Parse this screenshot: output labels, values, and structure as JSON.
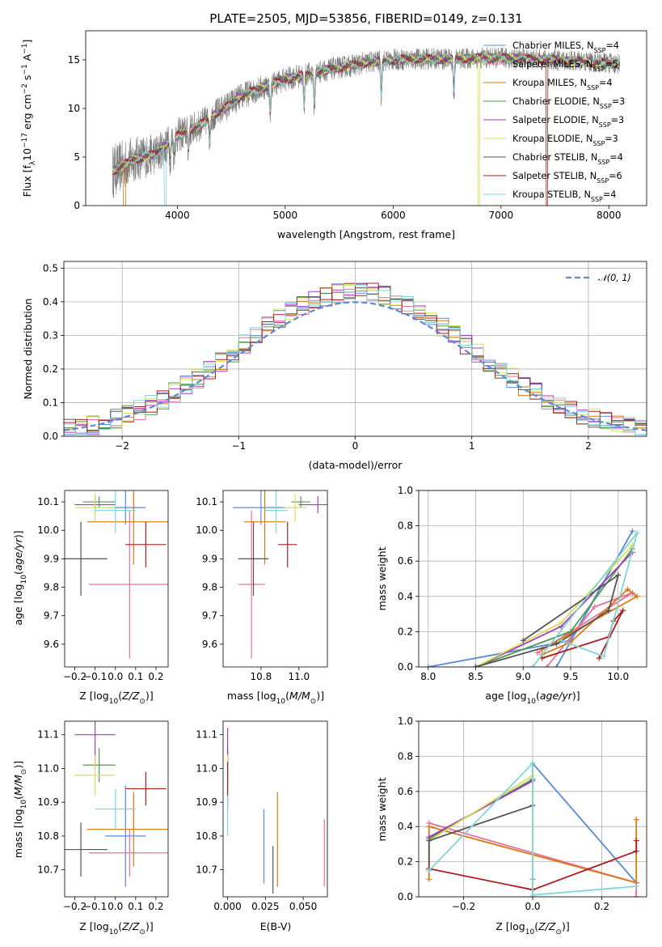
{
  "chart_data": [
    {
      "type": "line",
      "title": "PLATE=2505, MJD=53856, FIBERID=0149, z=0.131",
      "xlabel": "wavelength [Angstrom, rest frame]",
      "ylabel": "Flux [f_λ10^-17 erg cm^-2 s^-1 A^-1]",
      "xlim": [
        3150,
        8350
      ],
      "ylim": [
        0,
        18
      ],
      "xticks": [
        4000,
        5000,
        6000,
        7000,
        8000
      ],
      "yticks": [
        0,
        5,
        10,
        15
      ],
      "grid": false,
      "legend_position": "right",
      "series": [
        {
          "name": "Chabrier MILES, N_SSP=4",
          "label_main": "Chabrier MILES, N",
          "label_sub": "SSP",
          "label_tail": "=4",
          "color": "#5b8ad8"
        },
        {
          "name": "Salpeter MILES, N_SSP=5",
          "label_main": "Salpeter MILES, N",
          "label_sub": "SSP",
          "label_tail": "=5",
          "color": "#e8709f"
        },
        {
          "name": "Kroupa MILES, N_SSP=4",
          "label_main": "Kroupa MILES, N",
          "label_sub": "SSP",
          "label_tail": "=4",
          "color": "#d97a12"
        },
        {
          "name": "Chabrier ELODIE, N_SSP=3",
          "label_main": "Chabrier ELODIE, N",
          "label_sub": "SSP",
          "label_tail": "=3",
          "color": "#4f9a4f"
        },
        {
          "name": "Salpeter ELODIE, N_SSP=3",
          "label_main": "Salpeter ELODIE, N",
          "label_sub": "SSP",
          "label_tail": "=3",
          "color": "#a23cc1"
        },
        {
          "name": "Kroupa ELODIE, N_SSP=3",
          "label_main": "Kroupa ELODIE, N",
          "label_sub": "SSP",
          "label_tail": "=3",
          "color": "#d8e055"
        },
        {
          "name": "Chabrier STELIB, N_SSP=4",
          "label_main": "Chabrier STELIB, N",
          "label_sub": "SSP",
          "label_tail": "=4",
          "color": "#555555"
        },
        {
          "name": "Salpeter STELIB, N_SSP=6",
          "label_main": "Salpeter STELIB, N",
          "label_sub": "SSP",
          "label_tail": "=6",
          "color": "#aa1f1f"
        },
        {
          "name": "Kroupa STELIB, N_SSP=4",
          "label_main": "Kroupa STELIB, N",
          "label_sub": "SSP",
          "label_tail": "=4",
          "color": "#7fd6d8"
        }
      ],
      "continuum": [
        [
          3400,
          3.5
        ],
        [
          3600,
          4.8
        ],
        [
          3800,
          5.3
        ],
        [
          4000,
          7.2
        ],
        [
          4200,
          8.2
        ],
        [
          4400,
          9.8
        ],
        [
          4600,
          11.3
        ],
        [
          4800,
          12.2
        ],
        [
          5000,
          13.0
        ],
        [
          5200,
          13.5
        ],
        [
          5400,
          14.0
        ],
        [
          5600,
          14.4
        ],
        [
          5800,
          14.8
        ],
        [
          6000,
          15.0
        ],
        [
          6200,
          15.1
        ],
        [
          6400,
          15.1
        ],
        [
          6600,
          15.1
        ],
        [
          6800,
          15.2
        ],
        [
          7000,
          15.2
        ],
        [
          7200,
          15.1
        ],
        [
          7500,
          15.0
        ],
        [
          7800,
          14.8
        ],
        [
          8100,
          14.6
        ]
      ],
      "absorption_features": [
        3934,
        3969,
        4102,
        4300,
        4861,
        5175,
        5270,
        5890,
        6563
      ],
      "notes": "Observed spectrum and 9 model fits overlap; some models drop to 0 near 3500, 3880, 6800, 7420 Angstrom."
    },
    {
      "type": "line",
      "xlabel": "(data-model)/error",
      "ylabel": "Normed distribution",
      "xlim": [
        -2.5,
        2.5
      ],
      "ylim": [
        0,
        0.52
      ],
      "xticks": [
        -2,
        -1,
        0,
        1,
        2
      ],
      "yticks": [
        0.0,
        0.1,
        0.2,
        0.3,
        0.4,
        0.5
      ],
      "grid": true,
      "legend_position": "top-right",
      "reference_curve": {
        "name": "N(0,1)",
        "color": "#5b8ad8",
        "style": "dashed"
      },
      "histogram_bin_width": 0.1,
      "histogram_series_colors": [
        "#5b8ad8",
        "#e8709f",
        "#d97a12",
        "#4f9a4f",
        "#a23cc1",
        "#d8e055",
        "#555555",
        "#aa1f1f",
        "#7fd6d8"
      ]
    },
    {
      "type": "scatter",
      "xlabel": "Z [log10(Z/Z_sun)]",
      "ylabel": "age [log10(age/yr)]",
      "xlim": [
        -0.25,
        0.26
      ],
      "ylim": [
        9.52,
        10.14
      ],
      "xticks": [
        -0.2,
        -0.1,
        0.0,
        0.1,
        0.2
      ],
      "yticks": [
        9.6,
        9.7,
        9.8,
        9.9,
        10.0,
        10.1
      ],
      "points": [
        {
          "color": "#5b8ad8",
          "x": 0.05,
          "xerr": 0.1,
          "y": 10.08,
          "yerr": 0.06
        },
        {
          "color": "#e8709f",
          "x": 0.07,
          "xerr": 0.2,
          "y": 9.81,
          "yerr": 0.26
        },
        {
          "color": "#d97a12",
          "x": 0.09,
          "xerr": 0.23,
          "y": 10.03,
          "yerr": 0.15
        },
        {
          "color": "#4f9a4f",
          "x": -0.08,
          "xerr": 0.08,
          "y": 10.1,
          "yerr": 0.02
        },
        {
          "color": "#a23cc1",
          "x": -0.1,
          "xerr": 0.1,
          "y": 10.09,
          "yerr": 0.03
        },
        {
          "color": "#d8e055",
          "x": -0.1,
          "xerr": 0.1,
          "y": 10.08,
          "yerr": 0.05
        },
        {
          "color": "#555555",
          "x": -0.17,
          "xerr": 0.13,
          "y": 9.9,
          "yerr": 0.13
        },
        {
          "color": "#aa1f1f",
          "x": 0.15,
          "xerr": 0.1,
          "y": 9.95,
          "yerr": 0.08
        },
        {
          "color": "#7fd6d8",
          "x": 0.0,
          "xerr": 0.1,
          "y": 10.07,
          "yerr": 0.08
        }
      ]
    },
    {
      "type": "scatter",
      "xlabel": "mass [log10(M/M_sun)]",
      "ylabel": "",
      "xlim": [
        10.6,
        11.15
      ],
      "ylim": [
        9.52,
        10.14
      ],
      "xticks": [
        10.8,
        11.0
      ],
      "yticks": [
        9.6,
        9.7,
        9.8,
        9.9,
        10.0,
        10.1
      ],
      "points": [
        {
          "color": "#5b8ad8",
          "x": 10.8,
          "xerr": 0.15,
          "y": 10.08,
          "yerr": 0.06
        },
        {
          "color": "#e8709f",
          "x": 10.75,
          "xerr": 0.07,
          "y": 9.81,
          "yerr": 0.26
        },
        {
          "color": "#d97a12",
          "x": 10.82,
          "xerr": 0.11,
          "y": 10.03,
          "yerr": 0.15
        },
        {
          "color": "#4f9a4f",
          "x": 11.01,
          "xerr": 0.05,
          "y": 10.1,
          "yerr": 0.02
        },
        {
          "color": "#a23cc1",
          "x": 11.1,
          "xerr": 0.1,
          "y": 10.09,
          "yerr": 0.03
        },
        {
          "color": "#d8e055",
          "x": 10.98,
          "xerr": 0.06,
          "y": 10.08,
          "yerr": 0.05
        },
        {
          "color": "#555555",
          "x": 10.76,
          "xerr": 0.08,
          "y": 9.9,
          "yerr": 0.13
        },
        {
          "color": "#aa1f1f",
          "x": 10.94,
          "xerr": 0.05,
          "y": 9.95,
          "yerr": 0.08
        },
        {
          "color": "#7fd6d8",
          "x": 10.88,
          "xerr": 0.06,
          "y": 10.07,
          "yerr": 0.08
        }
      ]
    },
    {
      "type": "line",
      "xlabel": "age [log10(age/yr)]",
      "ylabel": "mass weight",
      "xlim": [
        7.9,
        10.3
      ],
      "ylim": [
        0,
        1
      ],
      "xticks": [
        8.0,
        8.5,
        9.0,
        9.5,
        10.0
      ],
      "yticks": [
        0.0,
        0.2,
        0.4,
        0.6,
        0.8,
        1.0
      ],
      "grid": true,
      "series": [
        {
          "color": "#5b8ad8",
          "points": [
            [
              8.0,
              0.0
            ],
            [
              9.5,
              0.15
            ],
            [
              10.15,
              0.77
            ],
            [
              9.35,
              0.0
            ]
          ]
        },
        {
          "color": "#e8709f",
          "points": [
            [
              9.25,
              0.0
            ],
            [
              9.75,
              0.34
            ],
            [
              10.15,
              0.42
            ],
            [
              9.15,
              0.08
            ]
          ]
        },
        {
          "color": "#d97a12",
          "points": [
            [
              9.2,
              0.07
            ],
            [
              9.5,
              0.14
            ],
            [
              10.1,
              0.44
            ],
            [
              10.2,
              0.4
            ],
            [
              9.2,
              0.1
            ]
          ]
        },
        {
          "color": "#4f9a4f",
          "points": [
            [
              8.5,
              0.0
            ],
            [
              9.5,
              0.2
            ],
            [
              10.15,
              0.67
            ]
          ]
        },
        {
          "color": "#a23cc1",
          "points": [
            [
              8.5,
              0.0
            ],
            [
              9.4,
              0.23
            ],
            [
              10.15,
              0.65
            ]
          ]
        },
        {
          "color": "#d8e055",
          "points": [
            [
              8.5,
              0.0
            ],
            [
              9.4,
              0.25
            ],
            [
              10.15,
              0.69
            ]
          ]
        },
        {
          "color": "#555555",
          "points": [
            [
              8.5,
              0.0
            ],
            [
              9.35,
              0.13
            ],
            [
              9.9,
              0.32
            ],
            [
              10.0,
              0.52
            ],
            [
              9.0,
              0.15
            ]
          ]
        },
        {
          "color": "#aa1f1f",
          "points": [
            [
              9.2,
              0.05
            ],
            [
              9.9,
              0.17
            ],
            [
              9.95,
              0.26
            ],
            [
              10.05,
              0.32
            ],
            [
              9.8,
              0.05
            ]
          ]
        },
        {
          "color": "#7fd6d8",
          "points": [
            [
              9.4,
              0.15
            ],
            [
              9.85,
              0.06
            ],
            [
              10.2,
              0.76
            ],
            [
              9.1,
              0.0
            ]
          ]
        }
      ]
    },
    {
      "type": "scatter",
      "xlabel": "Z [log10(Z/Z_sun)]",
      "ylabel": "mass [log10(M/M_sun)]",
      "xlim": [
        -0.25,
        0.26
      ],
      "ylim": [
        10.62,
        11.14
      ],
      "xticks": [
        -0.2,
        -0.1,
        0.0,
        0.1,
        0.2
      ],
      "yticks": [
        10.7,
        10.8,
        10.9,
        11.0,
        11.1
      ],
      "points": [
        {
          "color": "#5b8ad8",
          "x": 0.05,
          "xerr": 0.1,
          "y": 10.8,
          "yerr": 0.15
        },
        {
          "color": "#e8709f",
          "x": 0.07,
          "xerr": 0.2,
          "y": 10.75,
          "yerr": 0.07
        },
        {
          "color": "#d97a12",
          "x": 0.09,
          "xerr": 0.23,
          "y": 10.82,
          "yerr": 0.11
        },
        {
          "color": "#4f9a4f",
          "x": -0.08,
          "xerr": 0.08,
          "y": 11.01,
          "yerr": 0.05
        },
        {
          "color": "#a23cc1",
          "x": -0.1,
          "xerr": 0.1,
          "y": 11.1,
          "yerr": 0.1
        },
        {
          "color": "#d8e055",
          "x": -0.1,
          "xerr": 0.1,
          "y": 10.98,
          "yerr": 0.06
        },
        {
          "color": "#555555",
          "x": -0.17,
          "xerr": 0.13,
          "y": 10.76,
          "yerr": 0.08
        },
        {
          "color": "#aa1f1f",
          "x": 0.15,
          "xerr": 0.1,
          "y": 10.94,
          "yerr": 0.05
        },
        {
          "color": "#7fd6d8",
          "x": 0.0,
          "xerr": 0.1,
          "y": 10.88,
          "yerr": 0.06
        }
      ]
    },
    {
      "type": "scatter",
      "xlabel": "E(B-V)",
      "ylabel": "",
      "xlim": [
        -0.003,
        0.066
      ],
      "ylim": [
        10.62,
        11.14
      ],
      "xticks": [
        0.0,
        0.025,
        0.05
      ],
      "xtick_labels": [
        "0.000",
        "0.025",
        "0.050"
      ],
      "yticks": [
        10.7,
        10.8,
        10.9,
        11.0,
        11.1
      ],
      "points": [
        {
          "color": "#5b8ad8",
          "x": 0.024,
          "y": 10.77,
          "yerr": 0.11
        },
        {
          "color": "#e8709f",
          "x": 0.064,
          "y": 10.75,
          "yerr": 0.1
        },
        {
          "color": "#d97a12",
          "x": 0.033,
          "y": 10.79,
          "yerr": 0.14
        },
        {
          "color": "#4f9a4f",
          "x": 0.0,
          "y": 11.01,
          "yerr": 0.05
        },
        {
          "color": "#a23cc1",
          "x": 0.0,
          "y": 11.03,
          "yerr": 0.09
        },
        {
          "color": "#d8e055",
          "x": 0.0,
          "y": 10.98,
          "yerr": 0.06
        },
        {
          "color": "#555555",
          "x": 0.03,
          "y": 10.7,
          "yerr": 0.07
        },
        {
          "color": "#aa1f1f",
          "x": 0.0,
          "y": 10.95,
          "yerr": 0.07
        },
        {
          "color": "#7fd6d8",
          "x": 0.0,
          "y": 10.86,
          "yerr": 0.06
        }
      ]
    },
    {
      "type": "line",
      "xlabel": "Z [log10(Z/Z_sun)]",
      "ylabel": "mass weight",
      "xlim": [
        -0.33,
        0.33
      ],
      "ylim": [
        0,
        1
      ],
      "xticks": [
        -0.2,
        0.0,
        0.2
      ],
      "yticks": [
        0.0,
        0.2,
        0.4,
        0.6,
        0.8,
        1.0
      ],
      "grid": true,
      "series": [
        {
          "color": "#5b8ad8",
          "points": [
            [
              0.0,
              0.1
            ],
            [
              0.0,
              0.76
            ],
            [
              0.3,
              0.08
            ],
            [
              0.3,
              0.0
            ]
          ]
        },
        {
          "color": "#e8709f",
          "points": [
            [
              -0.3,
              0.42
            ],
            [
              0.3,
              0.08
            ],
            [
              0.3,
              0.0
            ]
          ]
        },
        {
          "color": "#d97a12",
          "points": [
            [
              -0.3,
              0.1
            ],
            [
              -0.3,
              0.4
            ],
            [
              0.3,
              0.08
            ],
            [
              0.3,
              0.44
            ]
          ]
        },
        {
          "color": "#4f9a4f",
          "points": [
            [
              -0.3,
              0.33
            ],
            [
              0.0,
              0.67
            ],
            [
              0.0,
              0.0
            ]
          ]
        },
        {
          "color": "#a23cc1",
          "points": [
            [
              -0.3,
              0.34
            ],
            [
              0.0,
              0.66
            ],
            [
              0.0,
              0.0
            ]
          ]
        },
        {
          "color": "#d8e055",
          "points": [
            [
              -0.3,
              0.32
            ],
            [
              0.0,
              0.69
            ],
            [
              0.0,
              0.0
            ]
          ]
        },
        {
          "color": "#555555",
          "points": [
            [
              -0.3,
              0.15
            ],
            [
              -0.3,
              0.32
            ],
            [
              0.0,
              0.52
            ]
          ]
        },
        {
          "color": "#aa1f1f",
          "points": [
            [
              -0.3,
              0.16
            ],
            [
              0.0,
              0.04
            ],
            [
              0.3,
              0.26
            ],
            [
              0.3,
              0.32
            ]
          ]
        },
        {
          "color": "#7fd6d8",
          "points": [
            [
              -0.3,
              0.15
            ],
            [
              0.0,
              0.76
            ],
            [
              0.0,
              0.01
            ],
            [
              0.3,
              0.06
            ]
          ]
        }
      ]
    }
  ]
}
